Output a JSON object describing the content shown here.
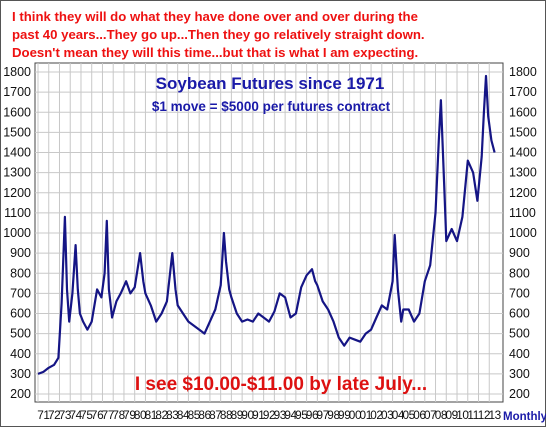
{
  "header_note": {
    "lines": [
      "I think they will do what they have done over and over during the",
      "past 40 years...They go up...Then they go relatively straight down.",
      "Doesn't mean they will this time...but that is what I am expecting."
    ]
  },
  "callout": "I see $10.00-$11.00 by late July...",
  "frequency_label": "Monthly",
  "chart_data": {
    "type": "line",
    "title": "Soybean Futures since 1971",
    "subtitle": "$1 move = $5000 per futures contract",
    "xlabel": "",
    "ylabel": "",
    "ylim": [
      200,
      1800
    ],
    "xlim": [
      1971,
      2014
    ],
    "grid": true,
    "y_ticks": [
      200,
      300,
      400,
      500,
      600,
      700,
      800,
      900,
      1000,
      1100,
      1200,
      1300,
      1400,
      1500,
      1600,
      1700,
      1800
    ],
    "x_tick_labels": [
      "71",
      "72",
      "73",
      "74",
      "75",
      "76",
      "77",
      "78",
      "79",
      "80",
      "81",
      "82",
      "83",
      "84",
      "85",
      "86",
      "87",
      "88",
      "89",
      "90",
      "91",
      "92",
      "93",
      "94",
      "95",
      "96",
      "97",
      "98",
      "99",
      "00",
      "01",
      "02",
      "03",
      "04",
      "05",
      "06",
      "07",
      "08",
      "09",
      "10",
      "11",
      "12",
      "13"
    ],
    "series": [
      {
        "color": "#151585",
        "x": [
          1971.0,
          1971.5,
          1972.0,
          1972.5,
          1972.9,
          1973.2,
          1973.5,
          1973.7,
          1973.9,
          1974.2,
          1974.5,
          1974.7,
          1974.9,
          1975.2,
          1975.6,
          1976.0,
          1976.5,
          1976.9,
          1977.2,
          1977.4,
          1977.6,
          1977.9,
          1978.3,
          1978.7,
          1979.2,
          1979.6,
          1980.0,
          1980.5,
          1980.8,
          1981.0,
          1981.5,
          1982.0,
          1982.5,
          1983.0,
          1983.5,
          1983.8,
          1984.0,
          1984.5,
          1985.0,
          1985.5,
          1986.0,
          1986.5,
          1987.0,
          1987.5,
          1988.0,
          1988.3,
          1988.5,
          1988.8,
          1989.0,
          1989.5,
          1990.0,
          1990.5,
          1991.0,
          1991.5,
          1992.0,
          1992.5,
          1993.0,
          1993.5,
          1994.0,
          1994.5,
          1995.0,
          1995.5,
          1996.0,
          1996.5,
          1996.8,
          1997.0,
          1997.5,
          1998.0,
          1998.5,
          1999.0,
          1999.5,
          2000.0,
          2000.5,
          2001.0,
          2001.5,
          2002.0,
          2002.5,
          2003.0,
          2003.5,
          2004.0,
          2004.2,
          2004.5,
          2004.8,
          2005.0,
          2005.5,
          2006.0,
          2006.5,
          2007.0,
          2007.5,
          2008.0,
          2008.3,
          2008.5,
          2008.8,
          2009.0,
          2009.5,
          2010.0,
          2010.5,
          2011.0,
          2011.5,
          2011.9,
          2012.3,
          2012.5,
          2012.7,
          2012.9,
          2013.2,
          2013.5
        ],
        "y": [
          300,
          310,
          330,
          345,
          380,
          650,
          1080,
          720,
          560,
          700,
          940,
          720,
          600,
          560,
          520,
          560,
          720,
          680,
          800,
          1060,
          720,
          580,
          660,
          700,
          760,
          700,
          730,
          900,
          760,
          700,
          640,
          560,
          600,
          660,
          900,
          720,
          640,
          600,
          560,
          540,
          520,
          500,
          560,
          620,
          740,
          1000,
          860,
          720,
          680,
          600,
          560,
          570,
          560,
          600,
          580,
          560,
          610,
          700,
          680,
          580,
          600,
          730,
          790,
          820,
          760,
          740,
          660,
          620,
          560,
          480,
          440,
          480,
          470,
          460,
          500,
          520,
          580,
          640,
          620,
          760,
          990,
          720,
          560,
          620,
          620,
          560,
          600,
          760,
          840,
          1100,
          1460,
          1660,
          1250,
          960,
          1020,
          960,
          1080,
          1360,
          1300,
          1160,
          1380,
          1600,
          1780,
          1580,
          1460,
          1400
        ]
      }
    ]
  }
}
